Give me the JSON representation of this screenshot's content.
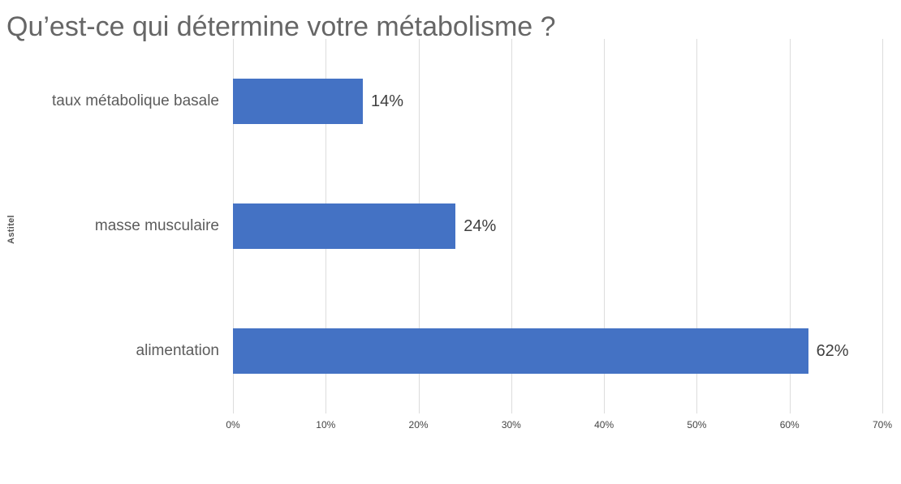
{
  "chart_data": {
    "type": "bar",
    "orientation": "horizontal",
    "title": "Qu’est-ce qui détermine votre métabolisme ?",
    "ylabel": "Astitel",
    "xlabel": "",
    "categories": [
      "taux métabolique basale",
      "masse musculaire",
      "alimentation"
    ],
    "values": [
      14,
      24,
      62
    ],
    "value_labels": [
      "14%",
      "24%",
      "62%"
    ],
    "x_tick_labels": [
      "0%",
      "10%",
      "20%",
      "30%",
      "40%",
      "50%",
      "60%",
      "70%"
    ],
    "x_tick_values": [
      0,
      10,
      20,
      30,
      40,
      50,
      60,
      70
    ],
    "xlim": [
      0,
      70
    ],
    "grid": true,
    "legend": "none",
    "bar_color": "#4472c4",
    "background_color": "#ffffff",
    "title_color": "#666666",
    "label_color": "#5c5c5c",
    "value_label_color": "#3f3f3f",
    "gridline_color": "#dcdcdc"
  }
}
